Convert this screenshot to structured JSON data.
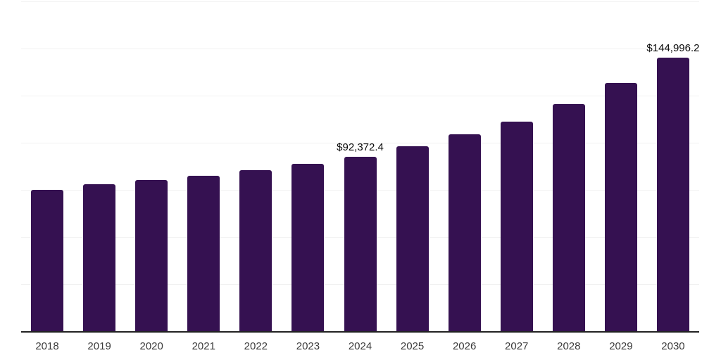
{
  "chart_data": {
    "type": "bar",
    "title": "",
    "xlabel": "",
    "ylabel": "",
    "categories": [
      "2018",
      "2019",
      "2020",
      "2021",
      "2022",
      "2023",
      "2024",
      "2025",
      "2026",
      "2027",
      "2028",
      "2029",
      "2030"
    ],
    "values": [
      75000,
      78000,
      80300,
      82500,
      85400,
      88900,
      92372.4,
      98200,
      104500,
      111200,
      120500,
      131700,
      144996.2
    ],
    "data_labels": [
      "",
      "",
      "",
      "",
      "",
      "",
      "$92,372.4",
      "",
      "",
      "",
      "",
      "",
      "$144,996.2"
    ],
    "ylim": [
      0,
      175000
    ],
    "gridline_interval": 25000,
    "grid": "horizontal",
    "legend_position": "none",
    "colors": {
      "bar": "#351151",
      "axis_line": "#222222",
      "gridline": "#f1f1f1",
      "data_label_text": "#0a0a0a",
      "tick_label_text": "#3a3a3a",
      "background": "#ffffff"
    }
  }
}
